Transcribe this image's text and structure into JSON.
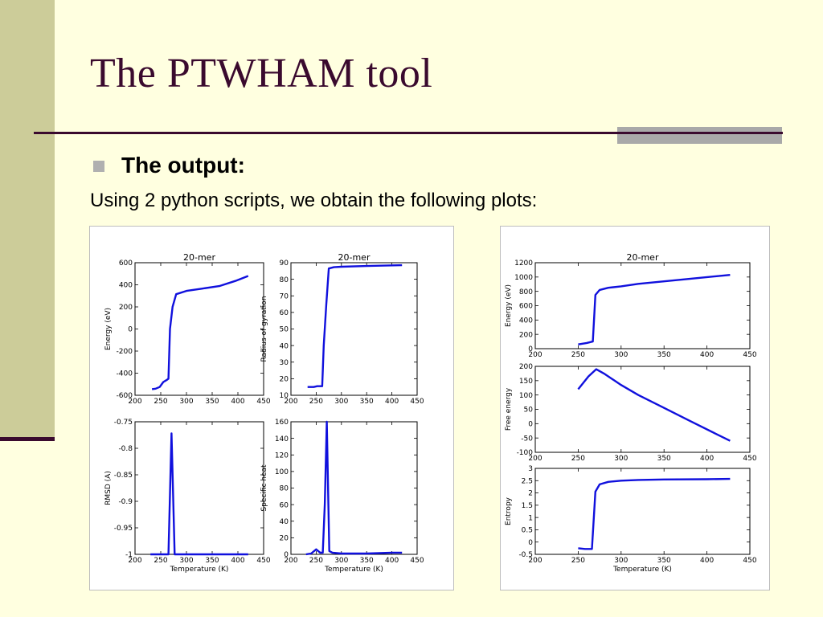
{
  "slide": {
    "title": "The PTWHAM tool",
    "bullet": "The output:",
    "body": "Using 2 python scripts, we obtain the following plots:"
  },
  "colors": {
    "title": "#3A0A2E",
    "background": "#FFFFE0",
    "strip": "#CCCC99",
    "accent_bar": "#A9A9A9",
    "series": "#1010DD"
  },
  "chart_data": [
    {
      "type": "line",
      "title": "20-mer",
      "xlabel": "",
      "ylabel": "Energy (eV)",
      "xlim": [
        200,
        450
      ],
      "ylim": [
        -600,
        600
      ],
      "xticks": [
        200,
        250,
        300,
        350,
        400,
        450
      ],
      "yticks": [
        -600,
        -400,
        -200,
        0,
        200,
        400,
        600
      ],
      "grid": false,
      "series": [
        {
          "x": [
            233,
            240,
            248,
            255,
            262,
            265,
            268,
            273,
            280,
            300,
            330,
            365,
            395,
            420
          ],
          "y": [
            -545,
            -540,
            -525,
            -480,
            -460,
            -450,
            0,
            200,
            315,
            345,
            365,
            390,
            435,
            480
          ]
        }
      ]
    },
    {
      "type": "line",
      "title": "20-mer",
      "xlabel": "",
      "ylabel": "Radius of gyration",
      "xlim": [
        200,
        450
      ],
      "ylim": [
        10,
        90
      ],
      "xticks": [
        200,
        250,
        300,
        350,
        400,
        450
      ],
      "yticks": [
        10,
        20,
        30,
        40,
        50,
        60,
        70,
        80,
        90
      ],
      "grid": false,
      "series": [
        {
          "x": [
            233,
            245,
            252,
            262,
            265,
            270,
            275,
            285,
            300,
            350,
            420
          ],
          "y": [
            15,
            15,
            15.5,
            15.5,
            40,
            65,
            86.5,
            87.3,
            87.6,
            88,
            88.5
          ]
        }
      ]
    },
    {
      "type": "line",
      "title": "",
      "xlabel": "Temperature (K)",
      "ylabel": "RMSD (A)",
      "xlim": [
        200,
        450
      ],
      "ylim": [
        -1.0,
        -0.75
      ],
      "xticks": [
        200,
        250,
        300,
        350,
        400,
        450
      ],
      "yticks": [
        -1.0,
        -0.95,
        -0.9,
        -0.85,
        -0.8,
        -0.75
      ],
      "grid": false,
      "series": [
        {
          "x": [
            230,
            265,
            271,
            277,
            300,
            350,
            420
          ],
          "y": [
            -1.0,
            -1.0,
            -0.772,
            -1.0,
            -1.0,
            -1.0,
            -1.0
          ]
        }
      ]
    },
    {
      "type": "line",
      "title": "",
      "xlabel": "Temperature (K)",
      "ylabel": "Specific heat",
      "xlim": [
        200,
        450
      ],
      "ylim": [
        0,
        160
      ],
      "xticks": [
        200,
        250,
        300,
        350,
        400,
        450
      ],
      "yticks": [
        0,
        20,
        40,
        60,
        80,
        100,
        120,
        140,
        160
      ],
      "grid": false,
      "series": [
        {
          "x": [
            230,
            240,
            250,
            258,
            263,
            267,
            271,
            276,
            282,
            300,
            350,
            400,
            420
          ],
          "y": [
            0,
            1,
            6,
            2,
            2,
            60,
            160,
            4,
            2,
            1,
            1,
            2,
            2
          ]
        }
      ]
    },
    {
      "type": "line",
      "title": "20-mer",
      "xlabel": "",
      "ylabel": "Energy (eV)",
      "xlim": [
        200,
        450
      ],
      "ylim": [
        0,
        1200
      ],
      "xticks": [
        200,
        250,
        300,
        350,
        400,
        450
      ],
      "yticks": [
        0,
        200,
        400,
        600,
        800,
        1000,
        1200
      ],
      "grid": false,
      "series": [
        {
          "x": [
            250,
            260,
            267,
            270,
            275,
            285,
            300,
            320,
            350,
            380,
            410,
            427
          ],
          "y": [
            60,
            80,
            100,
            750,
            820,
            850,
            870,
            905,
            940,
            975,
            1010,
            1030
          ]
        }
      ]
    },
    {
      "type": "line",
      "title": "",
      "xlabel": "",
      "ylabel": "Free energy",
      "xlim": [
        200,
        450
      ],
      "ylim": [
        -100,
        200
      ],
      "xticks": [
        200,
        250,
        300,
        350,
        400,
        450
      ],
      "yticks": [
        -100,
        -50,
        0,
        50,
        100,
        150,
        200
      ],
      "grid": false,
      "series": [
        {
          "x": [
            250,
            262,
            271,
            280,
            300,
            320,
            350,
            380,
            410,
            427
          ],
          "y": [
            120,
            165,
            190,
            175,
            135,
            100,
            55,
            10,
            -35,
            -60
          ]
        }
      ]
    },
    {
      "type": "line",
      "title": "",
      "xlabel": "Temperature (K)",
      "ylabel": "Entropy",
      "xlim": [
        200,
        450
      ],
      "ylim": [
        -0.5,
        3.0
      ],
      "xticks": [
        200,
        250,
        300,
        350,
        400,
        450
      ],
      "yticks": [
        -0.5,
        0.0,
        0.5,
        1.0,
        1.5,
        2.0,
        2.5,
        3.0
      ],
      "grid": false,
      "series": [
        {
          "x": [
            250,
            258,
            266,
            270,
            275,
            285,
            300,
            320,
            350,
            400,
            427
          ],
          "y": [
            -0.25,
            -0.28,
            -0.28,
            2.05,
            2.35,
            2.45,
            2.5,
            2.53,
            2.55,
            2.56,
            2.57
          ]
        }
      ]
    }
  ]
}
